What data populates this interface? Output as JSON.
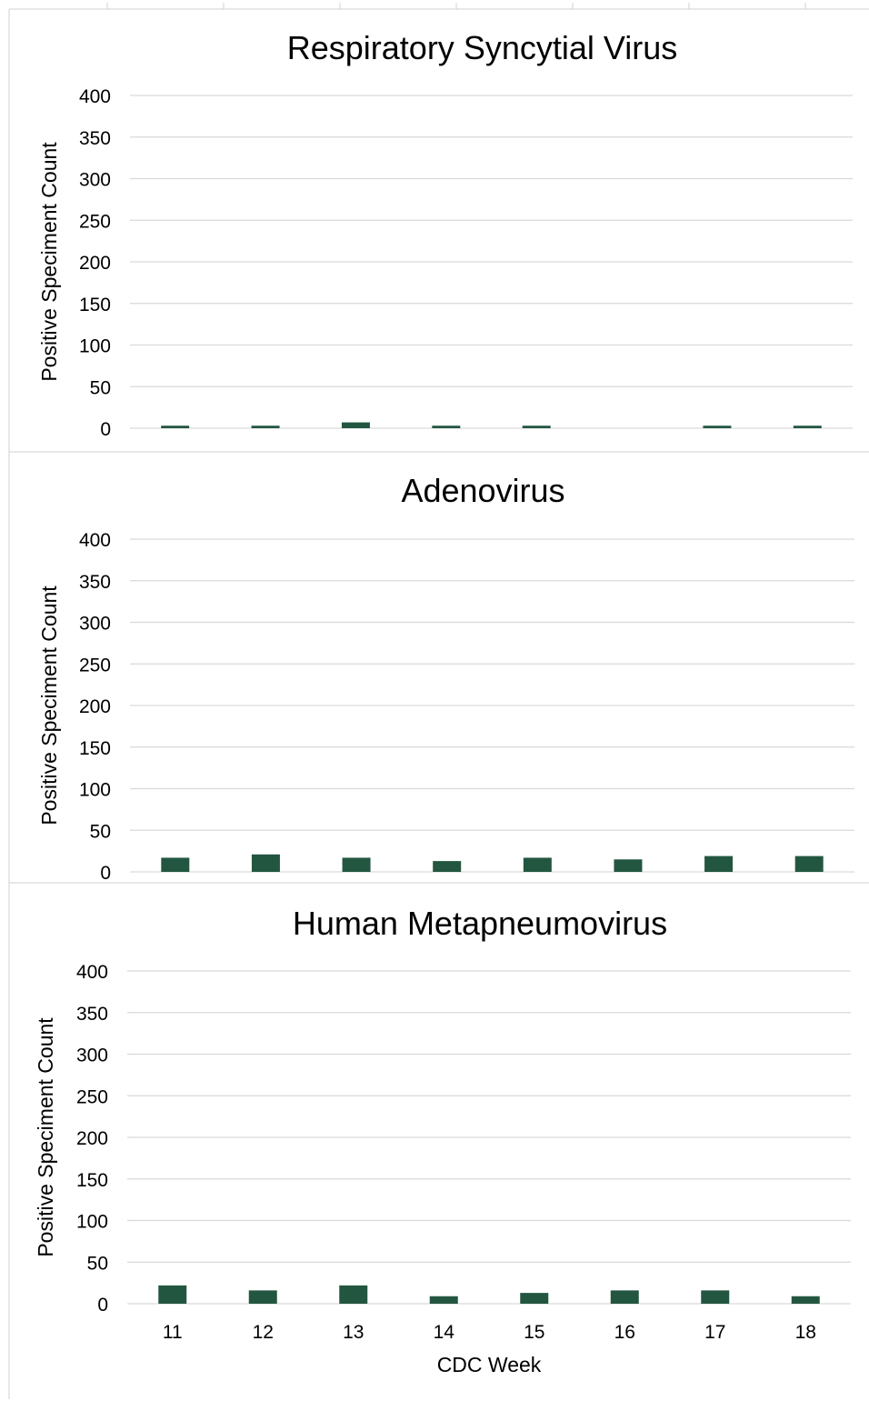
{
  "colors": {
    "bar": "#235640",
    "grid": "#d9d9d9",
    "text": "#000000"
  },
  "chart_data": [
    {
      "type": "bar",
      "title": "Respiratory Syncytial Virus",
      "ylabel": "Positive Speciment Count",
      "xlabel": "",
      "categories": [
        "11",
        "12",
        "13",
        "14",
        "15",
        "16",
        "17",
        "18"
      ],
      "values": [
        3,
        3,
        7,
        3,
        3,
        0,
        3,
        3
      ],
      "yticks": [
        0,
        50,
        100,
        150,
        200,
        250,
        300,
        350,
        400
      ],
      "ylim": [
        0,
        400
      ],
      "show_x_tick_labels": false,
      "grid": true,
      "legend": "none"
    },
    {
      "type": "bar",
      "title": "Adenovirus",
      "ylabel": "Positive Speciment Count",
      "xlabel": "",
      "categories": [
        "11",
        "12",
        "13",
        "14",
        "15",
        "16",
        "17",
        "18"
      ],
      "values": [
        17,
        21,
        17,
        13,
        17,
        15,
        19,
        19
      ],
      "yticks": [
        0,
        50,
        100,
        150,
        200,
        250,
        300,
        350,
        400
      ],
      "ylim": [
        0,
        400
      ],
      "show_x_tick_labels": false,
      "grid": true,
      "legend": "none"
    },
    {
      "type": "bar",
      "title": "Human Metapneumovirus",
      "ylabel": "Positive Speciment Count",
      "xlabel": "CDC Week",
      "categories": [
        "11",
        "12",
        "13",
        "14",
        "15",
        "16",
        "17",
        "18"
      ],
      "values": [
        22,
        16,
        22,
        9,
        13,
        16,
        16,
        9
      ],
      "yticks": [
        0,
        50,
        100,
        150,
        200,
        250,
        300,
        350,
        400
      ],
      "ylim": [
        0,
        400
      ],
      "show_x_tick_labels": true,
      "grid": true,
      "legend": "none"
    }
  ]
}
